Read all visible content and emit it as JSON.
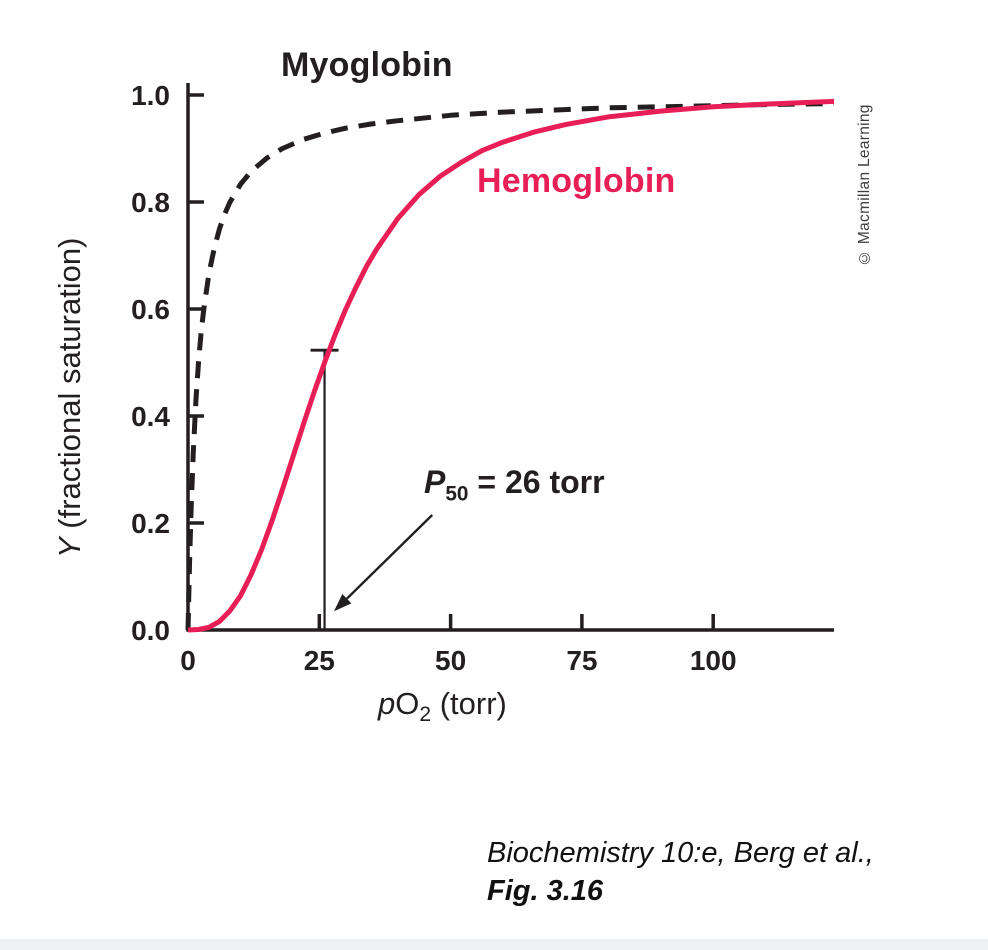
{
  "chart_data": {
    "type": "line",
    "title": "",
    "xlabel": "pO2 (torr)",
    "ylabel": "Y (fractional saturation)",
    "xlabel_parts": {
      "italic": "p",
      "text": "O",
      "sub": "2",
      "rest": " (torr)"
    },
    "ylabel_parts": {
      "italic": "Y",
      "rest": " (fractional saturation)"
    },
    "xlim": [
      0,
      123
    ],
    "ylim": [
      0,
      1.0
    ],
    "grid": false,
    "legend": "inline-labels",
    "axis_color": "#231f20",
    "xticks": [
      {
        "v": 0,
        "label": "0",
        "tick": false
      },
      {
        "v": 25,
        "label": "25",
        "tick": true
      },
      {
        "v": 50,
        "label": "50",
        "tick": true
      },
      {
        "v": 75,
        "label": "75",
        "tick": true
      },
      {
        "v": 100,
        "label": "100",
        "tick": true
      }
    ],
    "yticks": [
      {
        "v": 0.0,
        "label": "0.0",
        "tick": false
      },
      {
        "v": 0.2,
        "label": "0.2",
        "tick": true
      },
      {
        "v": 0.4,
        "label": "0.4",
        "tick": true
      },
      {
        "v": 0.6,
        "label": "0.6",
        "tick": true
      },
      {
        "v": 0.8,
        "label": "0.8",
        "tick": true
      },
      {
        "v": 1.0,
        "label": "1.0",
        "tick": true
      }
    ],
    "series": [
      {
        "name": "Myoglobin",
        "color": "#231f20",
        "style": "dashed",
        "points": [
          [
            0,
            0
          ],
          [
            0.3,
            0.13
          ],
          [
            0.6,
            0.231
          ],
          [
            1,
            0.333
          ],
          [
            1.5,
            0.429
          ],
          [
            2,
            0.5
          ],
          [
            2.5,
            0.556
          ],
          [
            3,
            0.6
          ],
          [
            4,
            0.667
          ],
          [
            5,
            0.714
          ],
          [
            6,
            0.75
          ],
          [
            7,
            0.778
          ],
          [
            8,
            0.8
          ],
          [
            10,
            0.833
          ],
          [
            12,
            0.857
          ],
          [
            15,
            0.882
          ],
          [
            18,
            0.9
          ],
          [
            22,
            0.917
          ],
          [
            26,
            0.929
          ],
          [
            30,
            0.938
          ],
          [
            35,
            0.946
          ],
          [
            40,
            0.952
          ],
          [
            50,
            0.962
          ],
          [
            60,
            0.968
          ],
          [
            70,
            0.972
          ],
          [
            80,
            0.976
          ],
          [
            90,
            0.978
          ],
          [
            100,
            0.98
          ],
          [
            110,
            0.982
          ],
          [
            123,
            0.984
          ]
        ]
      },
      {
        "name": "Hemoglobin",
        "color": "#e81e56",
        "style": "solid",
        "points": [
          [
            0,
            0
          ],
          [
            2,
            0.001
          ],
          [
            4,
            0.005
          ],
          [
            6,
            0.016
          ],
          [
            8,
            0.036
          ],
          [
            10,
            0.064
          ],
          [
            12,
            0.103
          ],
          [
            14,
            0.15
          ],
          [
            16,
            0.204
          ],
          [
            18,
            0.263
          ],
          [
            20,
            0.324
          ],
          [
            22,
            0.385
          ],
          [
            24,
            0.444
          ],
          [
            26,
            0.5
          ],
          [
            28,
            0.552
          ],
          [
            30,
            0.599
          ],
          [
            32,
            0.641
          ],
          [
            34,
            0.68
          ],
          [
            36,
            0.713
          ],
          [
            40,
            0.77
          ],
          [
            44,
            0.814
          ],
          [
            48,
            0.848
          ],
          [
            52,
            0.874
          ],
          [
            56,
            0.896
          ],
          [
            60,
            0.912
          ],
          [
            66,
            0.931
          ],
          [
            72,
            0.945
          ],
          [
            80,
            0.959
          ],
          [
            90,
            0.97
          ],
          [
            100,
            0.978
          ],
          [
            110,
            0.983
          ],
          [
            123,
            0.988
          ]
        ]
      }
    ],
    "annotation": {
      "label": "P50 = 26 torr",
      "label_parts": {
        "p": "P",
        "sub": "50",
        "rest": " = 26 torr"
      },
      "x": 26,
      "y": 0.5,
      "marker_top_y": 0.523,
      "arrow_from": [
        46.5,
        0.215
      ],
      "arrow_to": [
        27.8,
        0.035
      ]
    }
  },
  "credit": "© Macmillan Learning",
  "caption": {
    "line1": "Biochemistry 10:e, Berg et al.,",
    "line2": "Fig. 3.16"
  }
}
